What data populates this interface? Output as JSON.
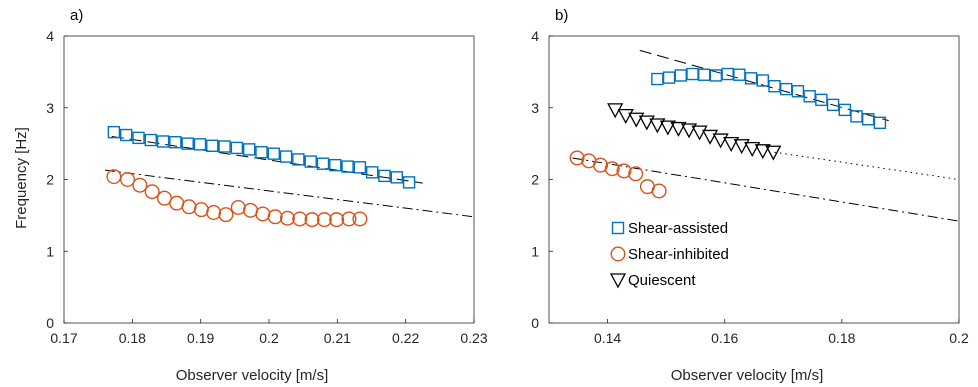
{
  "chart_data": [
    {
      "type": "scatter",
      "panel_label": "a)",
      "xlabel": "Observer velocity [m/s]",
      "ylabel": "Frequency [Hz]",
      "xlim": [
        0.17,
        0.23
      ],
      "ylim": [
        0,
        4
      ],
      "xticks": [
        0.17,
        0.18,
        0.19,
        0.2,
        0.21,
        0.22,
        0.23
      ],
      "xtick_labels": [
        "0.17",
        "0.18",
        "0.19",
        "0.2",
        "0.21",
        "0.22",
        "0.23"
      ],
      "yticks": [
        0,
        1,
        2,
        3,
        4
      ],
      "ytick_labels": [
        "0",
        "1",
        "2",
        "3",
        "4"
      ],
      "grid": false,
      "series": [
        {
          "marker": "square",
          "color": "#0072BD",
          "x": [
            0.1773,
            0.1791,
            0.1809,
            0.1827,
            0.1845,
            0.1863,
            0.1881,
            0.1899,
            0.1917,
            0.1935,
            0.1953,
            0.1971,
            0.1989,
            0.2007,
            0.2025,
            0.2043,
            0.2061,
            0.2079,
            0.2097,
            0.2115,
            0.2133,
            0.2151,
            0.2169,
            0.2187,
            0.2205
          ],
          "y": [
            2.66,
            2.62,
            2.58,
            2.55,
            2.53,
            2.52,
            2.5,
            2.49,
            2.47,
            2.46,
            2.44,
            2.42,
            2.38,
            2.36,
            2.32,
            2.28,
            2.25,
            2.22,
            2.2,
            2.18,
            2.17,
            2.1,
            2.05,
            2.03,
            1.96
          ]
        },
        {
          "marker": "circle",
          "color": "#D95319",
          "x": [
            0.1773,
            0.1793,
            0.1811,
            0.1829,
            0.1847,
            0.1865,
            0.1883,
            0.1901,
            0.1919,
            0.1937,
            0.1955,
            0.1973,
            0.1991,
            0.2009,
            0.2027,
            0.2045,
            0.2063,
            0.2081,
            0.2099,
            0.2117,
            0.2133
          ],
          "y": [
            2.04,
            2.0,
            1.92,
            1.83,
            1.74,
            1.67,
            1.62,
            1.58,
            1.54,
            1.51,
            1.61,
            1.57,
            1.52,
            1.48,
            1.46,
            1.45,
            1.44,
            1.44,
            1.44,
            1.45,
            1.45
          ]
        }
      ],
      "fits": [
        {
          "style": "dashed",
          "x": [
            0.177,
            0.2225
          ],
          "y": [
            2.6,
            1.95
          ]
        },
        {
          "style": "dashdot",
          "x": [
            0.176,
            0.23
          ],
          "y": [
            2.13,
            1.48
          ]
        }
      ]
    },
    {
      "type": "scatter",
      "panel_label": "b)",
      "xlabel": "Observer velocity [m/s]",
      "ylabel": "",
      "xlim": [
        0.13,
        0.2
      ],
      "ylim": [
        0,
        4
      ],
      "xticks": [
        0.14,
        0.16,
        0.18,
        0.2
      ],
      "xtick_labels": [
        "0.14",
        "0.16",
        "0.18",
        "0.2"
      ],
      "yticks": [
        0,
        1,
        2,
        3,
        4
      ],
      "ytick_labels": [
        "0",
        "1",
        "2",
        "3",
        "4"
      ],
      "grid": false,
      "legend": {
        "position": "lower-left",
        "entries": [
          {
            "label": "Shear-assisted",
            "marker": "square",
            "color": "#0072BD"
          },
          {
            "label": "Shear-inhibited",
            "marker": "circle",
            "color": "#D95319"
          },
          {
            "label": "Quiescent",
            "marker": "triangle-down",
            "color": "#000000"
          }
        ]
      },
      "series": [
        {
          "name": "Shear-assisted",
          "marker": "square",
          "color": "#0072BD",
          "x": [
            0.1485,
            0.1505,
            0.1525,
            0.1545,
            0.1565,
            0.1585,
            0.1605,
            0.1625,
            0.1645,
            0.1665,
            0.1685,
            0.1705,
            0.1725,
            0.1745,
            0.1765,
            0.1785,
            0.1805,
            0.1825,
            0.1845,
            0.1865
          ],
          "y": [
            3.4,
            3.42,
            3.45,
            3.47,
            3.46,
            3.45,
            3.47,
            3.46,
            3.41,
            3.38,
            3.3,
            3.26,
            3.23,
            3.16,
            3.11,
            3.04,
            2.97,
            2.88,
            2.84,
            2.79
          ]
        },
        {
          "name": "Shear-inhibited",
          "marker": "circle",
          "color": "#D95319",
          "x": [
            0.1348,
            0.1368,
            0.1388,
            0.1408,
            0.1428,
            0.1448,
            0.1468,
            0.1488
          ],
          "y": [
            2.3,
            2.26,
            2.2,
            2.15,
            2.12,
            2.08,
            1.9,
            1.84
          ]
        },
        {
          "name": "Quiescent",
          "marker": "triangle-down",
          "color": "#000000",
          "x": [
            0.1413,
            0.1431,
            0.1449,
            0.1467,
            0.1485,
            0.1503,
            0.1521,
            0.1539,
            0.1557,
            0.1575,
            0.1593,
            0.1611,
            0.1629,
            0.1647,
            0.1665,
            0.1683
          ],
          "y": [
            2.97,
            2.89,
            2.84,
            2.8,
            2.76,
            2.73,
            2.71,
            2.69,
            2.66,
            2.6,
            2.55,
            2.5,
            2.47,
            2.43,
            2.4,
            2.38
          ]
        }
      ],
      "fits": [
        {
          "style": "dashed",
          "x": [
            0.1455,
            0.188
          ],
          "y": [
            3.8,
            2.82
          ]
        },
        {
          "style": "dotted",
          "x": [
            0.1685,
            0.2
          ],
          "y": [
            2.38,
            2.0
          ]
        },
        {
          "style": "dashdot",
          "x": [
            0.134,
            0.2
          ],
          "y": [
            2.3,
            1.42
          ]
        }
      ]
    }
  ]
}
